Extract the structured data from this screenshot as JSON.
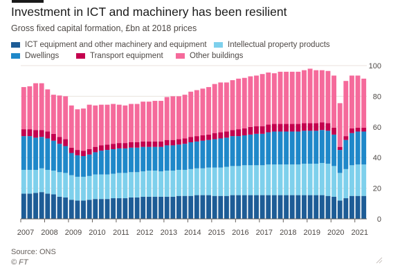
{
  "header": {
    "title": "Investment in ICT and machinery has been resilient",
    "subtitle": "Gross fixed capital formation, £bn at 2018 prices"
  },
  "footer": {
    "source": "Source: ONS",
    "credit": "© FT"
  },
  "colors": {
    "ict": "#1d5c96",
    "ipp": "#7ed0ec",
    "dwellings": "#1f88c9",
    "transport": "#c4004e",
    "buildings": "#f56a9b",
    "grid": "#e8e2dd",
    "baseline": "#66605c",
    "text": "#4d4845"
  },
  "chart_data": {
    "type": "bar",
    "stacked": true,
    "title": "Investment in ICT and machinery has been resilient",
    "subtitle": "Gross fixed capital formation, £bn at 2018 prices",
    "xlabel": "",
    "ylabel": "",
    "ylim": [
      0,
      100
    ],
    "yticks": [
      0,
      20,
      40,
      60,
      80,
      100
    ],
    "y_axis_side": "right",
    "xtick_labels": [
      "2007",
      "2008",
      "2009",
      "2010",
      "2011",
      "2012",
      "2013",
      "2014",
      "2015",
      "2016",
      "2017",
      "2018",
      "2019",
      "2020",
      "2021"
    ],
    "grid": true,
    "legend_position": "top",
    "categories": [
      "2007 Q1",
      "2007 Q2",
      "2007 Q3",
      "2007 Q4",
      "2008 Q1",
      "2008 Q2",
      "2008 Q3",
      "2008 Q4",
      "2009 Q1",
      "2009 Q2",
      "2009 Q3",
      "2009 Q4",
      "2010 Q1",
      "2010 Q2",
      "2010 Q3",
      "2010 Q4",
      "2011 Q1",
      "2011 Q2",
      "2011 Q3",
      "2011 Q4",
      "2012 Q1",
      "2012 Q2",
      "2012 Q3",
      "2012 Q4",
      "2013 Q1",
      "2013 Q2",
      "2013 Q3",
      "2013 Q4",
      "2014 Q1",
      "2014 Q2",
      "2014 Q3",
      "2014 Q4",
      "2015 Q1",
      "2015 Q2",
      "2015 Q3",
      "2015 Q4",
      "2016 Q1",
      "2016 Q2",
      "2016 Q3",
      "2016 Q4",
      "2017 Q1",
      "2017 Q2",
      "2017 Q3",
      "2017 Q4",
      "2018 Q1",
      "2018 Q2",
      "2018 Q3",
      "2018 Q4",
      "2019 Q1",
      "2019 Q2",
      "2019 Q3",
      "2019 Q4",
      "2020 Q1",
      "2020 Q2",
      "2020 Q3",
      "2020 Q4",
      "2021 Q1",
      "2021 Q2"
    ],
    "series": [
      {
        "name": "ICT equipment and other machinery and equipment",
        "color": "#1d5c96",
        "values": [
          16.5,
          16.5,
          17,
          17.5,
          16.5,
          16,
          14.5,
          14,
          12.5,
          12,
          12,
          12.5,
          13,
          13,
          13,
          13.5,
          13.5,
          13.5,
          14,
          14,
          14.5,
          14.5,
          14.5,
          14.5,
          14.5,
          14.5,
          15,
          15,
          15,
          15.5,
          15.5,
          15.5,
          15,
          15,
          15,
          15.5,
          15.5,
          15.5,
          15.5,
          15.5,
          15.5,
          15.5,
          15.5,
          15.5,
          15.5,
          15.5,
          15.5,
          15.5,
          15.5,
          15.5,
          15.5,
          15,
          14.5,
          12,
          13.5,
          15,
          15,
          15
        ]
      },
      {
        "name": "Intellectual property products",
        "color": "#7ed0ec",
        "values": [
          15.5,
          15.5,
          15,
          15.5,
          15.5,
          15.5,
          16,
          16,
          16,
          15.5,
          15.5,
          15.5,
          16,
          16,
          16,
          16,
          16.5,
          16.5,
          16.5,
          16.5,
          16.5,
          17,
          17,
          16.5,
          17,
          17,
          17,
          17,
          17.5,
          17.5,
          17.5,
          18,
          18.5,
          18.5,
          19,
          19,
          19,
          19.5,
          19.5,
          19.5,
          19.5,
          20,
          20,
          20,
          20,
          20,
          20,
          20.5,
          20.5,
          20.5,
          21,
          21,
          20,
          18,
          19,
          20,
          20.5,
          20.5
        ]
      },
      {
        "name": "Dwellings",
        "color": "#1f88c9",
        "values": [
          22,
          22,
          21,
          20.5,
          20.5,
          19.5,
          18.5,
          17.5,
          14.5,
          14,
          13.5,
          14,
          14.5,
          15.5,
          16,
          16,
          16,
          16,
          16,
          16,
          16,
          15.5,
          15.5,
          16,
          16.5,
          16.5,
          16.5,
          17,
          17.5,
          17.5,
          18,
          18,
          18.5,
          19,
          19,
          19.5,
          19.5,
          19.5,
          20,
          20.5,
          20.5,
          21,
          21.5,
          21.5,
          21.5,
          21.5,
          21.5,
          21.5,
          21.5,
          21.5,
          21.5,
          21.5,
          20.5,
          15,
          19,
          21,
          21.5,
          21.5
        ]
      },
      {
        "name": "Transport equipment",
        "color": "#c4004e",
        "values": [
          4.5,
          4.5,
          5,
          4.5,
          4.5,
          4.5,
          4.5,
          4.5,
          3.5,
          3.5,
          3.5,
          3.5,
          3.5,
          3.5,
          3.5,
          3.5,
          3.5,
          3.5,
          3.5,
          3.5,
          3.5,
          3.5,
          3.5,
          3.5,
          3.5,
          3.5,
          3.5,
          3.5,
          3.5,
          3.5,
          3.5,
          3.5,
          4,
          4,
          4,
          4,
          4.5,
          4.5,
          5,
          5,
          5,
          5,
          5,
          5,
          5,
          5,
          5,
          5,
          5,
          5,
          5,
          5,
          4.5,
          2,
          2.5,
          3,
          2.5,
          2.5
        ]
      },
      {
        "name": "Other buildings",
        "color": "#f56a9b",
        "values": [
          27.5,
          28,
          30.5,
          30.5,
          27.5,
          25.5,
          27,
          28,
          27.5,
          26.5,
          27.5,
          29,
          27,
          26.5,
          26,
          26,
          25,
          24.5,
          25,
          25,
          26,
          26,
          26.5,
          26.5,
          28,
          28.5,
          28,
          28.5,
          29.5,
          30,
          30.5,
          31,
          32,
          32.5,
          32,
          32.5,
          33,
          33,
          33,
          33,
          34,
          34,
          33,
          34,
          34,
          34,
          34,
          34.5,
          35.5,
          34.5,
          34,
          34,
          34,
          28.5,
          36,
          34.5,
          34,
          32
        ]
      }
    ]
  }
}
